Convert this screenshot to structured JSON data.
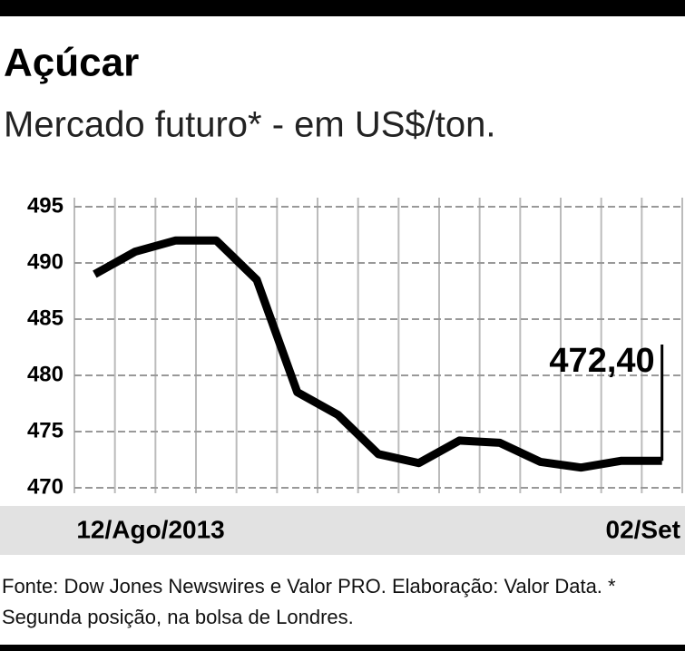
{
  "chart_data": {
    "type": "line",
    "title": "Açúcar",
    "subtitle": "Mercado futuro* - em US$/ton.",
    "categories": [
      "12/Ago/2013",
      null,
      null,
      null,
      null,
      null,
      null,
      null,
      null,
      null,
      null,
      null,
      null,
      null,
      "02/Set"
    ],
    "values": [
      489,
      491,
      492,
      492,
      488.5,
      478.5,
      476.5,
      473,
      472.2,
      474.2,
      474,
      472.3,
      471.8,
      472.4,
      472.4
    ],
    "value_labels": [
      null,
      null,
      null,
      null,
      null,
      null,
      null,
      null,
      null,
      null,
      null,
      null,
      null,
      null,
      "472,40"
    ],
    "color": "#000000",
    "ylim": [
      470,
      495
    ],
    "yticks": [
      470,
      475,
      480,
      485,
      490,
      495
    ],
    "grid": true,
    "source": "Fonte: Dow Jones Newswires e Valor PRO. Elaboração: Valor Data. * Segunda posição, na bolsa de Londres."
  }
}
